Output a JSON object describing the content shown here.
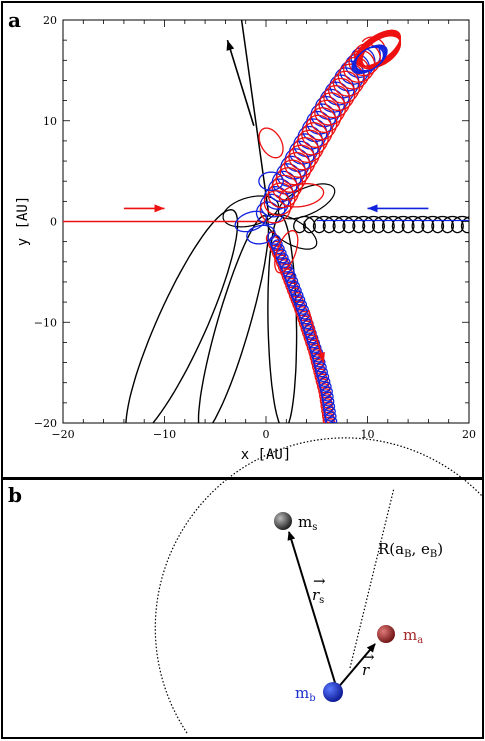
{
  "panel_a": {
    "letter": "a",
    "xlabel": "x [AU]",
    "ylabel": "y [AU]",
    "xlim": [
      -20,
      20
    ],
    "ylim": [
      -20,
      20
    ],
    "x_ticks": [
      -20,
      -10,
      0,
      10,
      20
    ],
    "y_ticks": [
      -20,
      -10,
      0,
      10,
      20
    ],
    "x_tick_labels": [
      "−20",
      "−10",
      "0",
      "10",
      "20"
    ],
    "y_tick_labels": [
      "−20",
      "−10",
      "0",
      "10",
      "20"
    ],
    "colors": {
      "red": "#ee1111",
      "blue": "#1122dd",
      "black": "#000000"
    }
  },
  "panel_b": {
    "letter": "b",
    "labels": {
      "ms": "m",
      "ms_sub": "s",
      "ma": "m",
      "ma_sub": "a",
      "mb": "m",
      "mb_sub": "b",
      "rs": "r",
      "rs_sub": "s",
      "r": "r",
      "R_label": "R(a",
      "R_sub1": "B",
      "R_mid": ", e",
      "R_sub2": "B",
      "R_close": ")"
    },
    "colors": {
      "ms": "#333333",
      "ma": "#a52a2a",
      "mb": "#1a2fcc"
    }
  },
  "chart_data": {
    "type": "line",
    "xlabel": "x [AU]",
    "ylabel": "y [AU]",
    "xlim": [
      -20,
      20
    ],
    "ylim": [
      -20,
      20
    ],
    "series": [
      {
        "color": "red",
        "x": [
          -20,
          -2,
          0,
          0.5,
          2,
          4,
          5,
          6
        ],
        "y": [
          0,
          0,
          0,
          -2,
          -5,
          -10,
          -15,
          -20
        ]
      },
      {
        "color": "blue",
        "x": [
          20,
          10,
          4,
          1,
          0.5,
          2,
          4,
          5,
          6
        ],
        "y": [
          0,
          0,
          0,
          0,
          -2,
          -5,
          -10,
          -15,
          -20
        ]
      },
      {
        "color": "red",
        "x": [
          0,
          2,
          5,
          8,
          10,
          11
        ],
        "y": [
          0,
          4,
          9,
          13,
          16,
          18
        ]
      },
      {
        "color": "blue",
        "x": [
          0,
          2,
          5,
          8,
          10
        ],
        "y": [
          0,
          3.5,
          8.5,
          12.5,
          15.5
        ]
      },
      {
        "color": "black",
        "x": [
          0,
          -2.5,
          -5
        ],
        "y": [
          0,
          10,
          20
        ]
      },
      {
        "color": "black",
        "x": [
          20,
          10,
          4,
          0
        ],
        "y": [
          0,
          0,
          0,
          0
        ]
      }
    ]
  }
}
